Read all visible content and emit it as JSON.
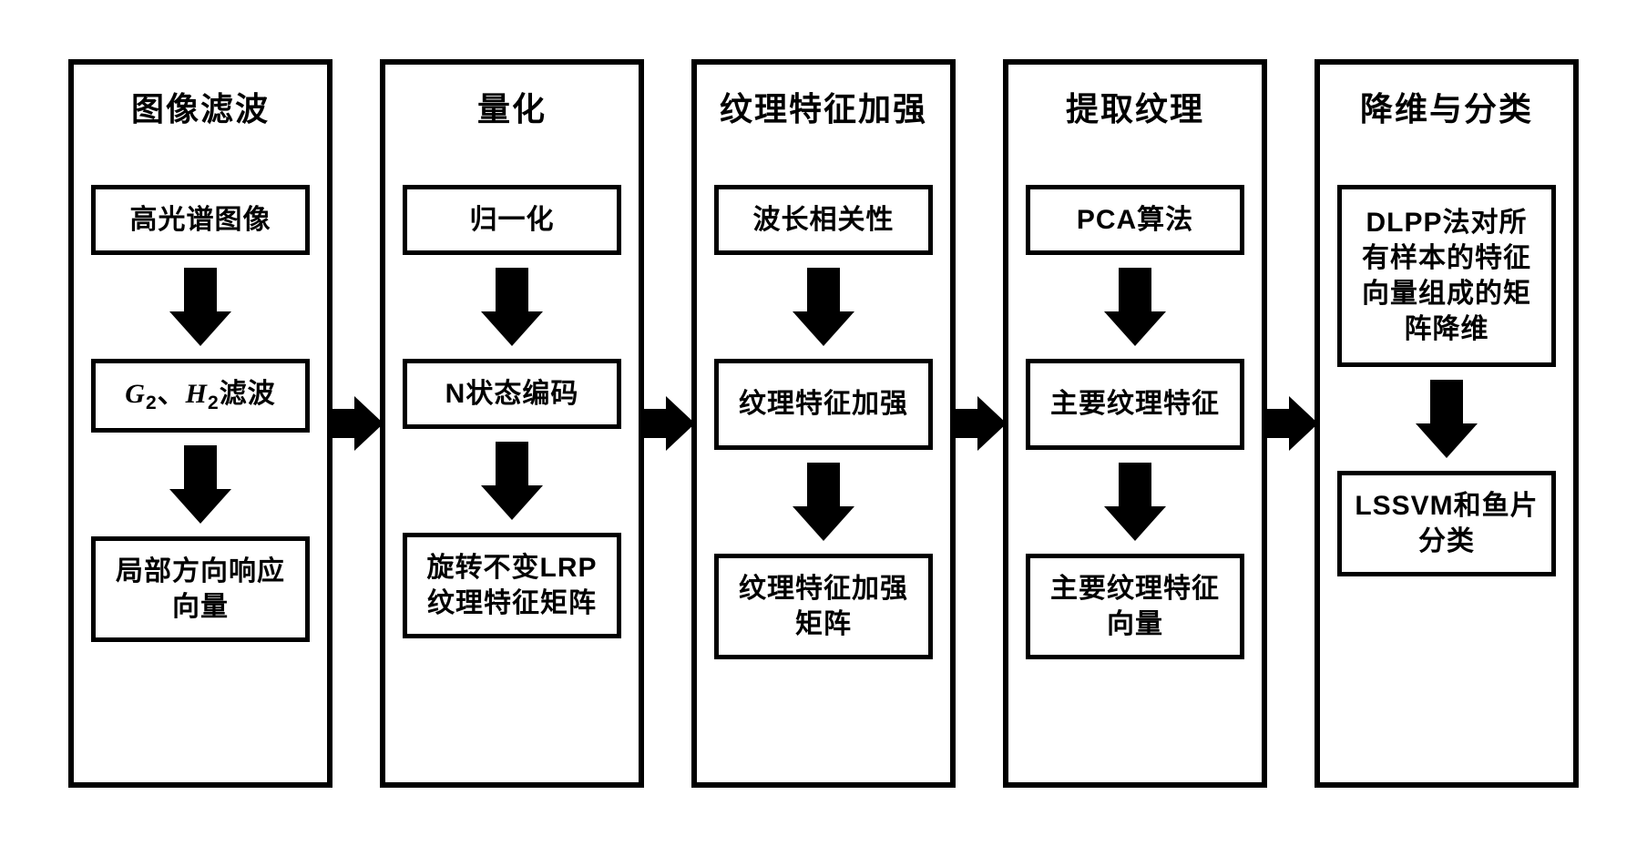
{
  "type": "flowchart",
  "layout": "horizontal-columns",
  "background_color": "#ffffff",
  "border_color": "#000000",
  "text_color": "#000000",
  "column_border_width": 6,
  "node_border_width": 5,
  "title_fontsize": 36,
  "node_fontsize": 30,
  "arrow_color": "#000000",
  "columns": [
    {
      "title": "图像滤波",
      "nodes": [
        {
          "label": "高光谱图像"
        },
        {
          "label": "G2、H2滤波",
          "html": true
        },
        {
          "label": "局部方向响应向量"
        }
      ]
    },
    {
      "title": "量化",
      "nodes": [
        {
          "label": "归一化"
        },
        {
          "label": "N状态编码"
        },
        {
          "label": "旋转不变LRP纹理特征矩阵"
        }
      ]
    },
    {
      "title": "纹理特征加强",
      "nodes": [
        {
          "label": "波长相关性"
        },
        {
          "label": "纹理特征加强"
        },
        {
          "label": "纹理特征加强矩阵"
        }
      ]
    },
    {
      "title": "提取纹理",
      "nodes": [
        {
          "label": "PCA算法"
        },
        {
          "label": "主要纹理特征"
        },
        {
          "label": "主要纹理特征向量"
        }
      ]
    },
    {
      "title": "降维与分类",
      "nodes": [
        {
          "label": "DLPP法对所有样本的特征向量组成的矩阵降维"
        },
        {
          "label": "LSSVM和鱼片分类"
        }
      ]
    }
  ]
}
